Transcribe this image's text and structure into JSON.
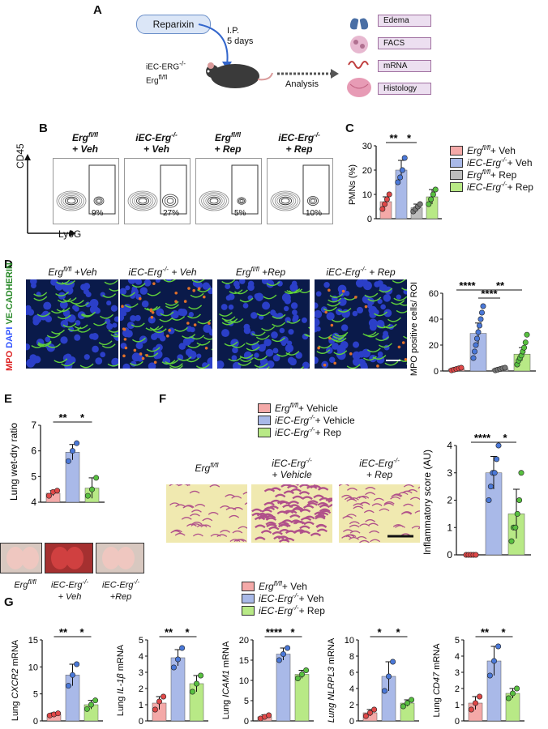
{
  "panels": {
    "A": "A",
    "B": "B",
    "C": "C",
    "D": "D",
    "E": "E",
    "F": "F",
    "G": "G"
  },
  "panel_a": {
    "drug": "Reparixin",
    "route": "I.P.",
    "duration": "5 days",
    "mouse_line1": "iEC-ERG",
    "mouse_line1_sup": "-/-",
    "mouse_line2": "Erg",
    "mouse_line2_sup": "fl/fl",
    "analysis": "Analysis",
    "outputs": [
      "Edema",
      "FACS",
      "mRNA",
      "Histology"
    ]
  },
  "panel_b": {
    "y_axis": "CD45",
    "x_axis": "Ly6G",
    "groups": [
      {
        "l1": "Erg",
        "sup": "fl/fl",
        "l2": "+ Veh",
        "pct": "9%"
      },
      {
        "l1": "iEC-Erg",
        "sup": "-/-",
        "l2": "+ Veh",
        "pct": "27%"
      },
      {
        "l1": "Erg",
        "sup": "fl/fl",
        "l2": "+ Rep",
        "pct": "5%"
      },
      {
        "l1": "iEC-Erg",
        "sup": "-/-",
        "l2": "+ Rep",
        "pct": "10%"
      }
    ]
  },
  "legend_bc": [
    {
      "name": "Erg",
      "sup": "fl/fl",
      "suffix": " + Veh",
      "color": "#f4a9a8"
    },
    {
      "name": "iEC-Erg",
      "sup": "-/-",
      "suffix": " + Veh",
      "color": "#a9b9e8"
    },
    {
      "name": "Erg",
      "sup": "fl/fl",
      "suffix": " + Rep",
      "color": "#bdbdbd"
    },
    {
      "name": "iEC-Erg",
      "sup": "-/-",
      "suffix": " + Rep",
      "color": "#b8e986"
    }
  ],
  "panel_d": {
    "titles": [
      {
        "l1": "Erg",
        "sup": "fl/fl",
        "l2": " +Veh"
      },
      {
        "l1": "iEC-Erg",
        "sup": "-/-",
        "l2": " + Veh"
      },
      {
        "l1": "Erg",
        "sup": "fl/fl",
        "l2": " +Rep"
      },
      {
        "l1": "iEC-Erg",
        "sup": "-/-",
        "l2": " + Rep"
      }
    ],
    "stain_mpo": "MPO",
    "stain_dapi": "DAPI",
    "stain_ve": "VE-CADHERIN"
  },
  "panel_e": {
    "photo_labels": [
      {
        "l1": "Erg",
        "sup": "fl/fl",
        "l2": ""
      },
      {
        "l1": "iEC-Erg",
        "sup": "-/-",
        "l2": "+ Veh"
      },
      {
        "l1": "iEC-Erg",
        "sup": "-/-",
        "l2": "+Rep"
      }
    ]
  },
  "panel_f": {
    "legend": [
      {
        "name": "Erg",
        "sup": "fl/fl",
        "suffix": " + Vehicle",
        "color": "#f4a9a8"
      },
      {
        "name": "iEC-Erg",
        "sup": "-/-",
        "suffix": " + Vehicle",
        "color": "#a9b9e8"
      },
      {
        "name": "iEC-Erg",
        "sup": "-/-",
        "suffix": " + Rep",
        "color": "#b8e986"
      }
    ],
    "titles": [
      {
        "l1": "Erg",
        "sup": "fl/fl",
        "l2": ""
      },
      {
        "l1": "iEC-Erg",
        "sup": "-/-",
        "l2": "+ Vehicle"
      },
      {
        "l1": "iEC-Erg",
        "sup": "-/-",
        "l2": "+ Rep"
      }
    ]
  },
  "legend_g": [
    {
      "name": "Erg",
      "sup": "fl/fl",
      "suffix": " + Veh",
      "color": "#f4a9a8"
    },
    {
      "name": "iEC-Erg",
      "sup": "-/-",
      "suffix": " + Veh",
      "color": "#a9b9e8"
    },
    {
      "name": "iEC-Erg",
      "sup": "-/-",
      "suffix": " + Rep",
      "color": "#b8e986"
    }
  ],
  "chart_data": [
    {
      "id": "C",
      "type": "bar",
      "ylabel": "PMNs (%)",
      "ylim": [
        0,
        30
      ],
      "yticks": [
        0,
        10,
        20,
        30
      ],
      "colors": [
        "#f4a9a8",
        "#a9b9e8",
        "#bdbdbd",
        "#b8e986"
      ],
      "means": [
        7,
        20,
        4.5,
        9
      ],
      "errors": [
        2,
        4,
        1.5,
        3
      ],
      "points": [
        [
          4,
          6,
          8,
          10
        ],
        [
          15,
          17,
          20,
          25
        ],
        [
          3,
          4,
          5,
          6
        ],
        [
          6,
          8,
          10,
          12
        ]
      ],
      "sig": [
        {
          "from": 0,
          "to": 1,
          "label": "**"
        },
        {
          "from": 1,
          "to": 2,
          "label": "*"
        }
      ]
    },
    {
      "id": "D",
      "type": "bar",
      "ylabel": "MPO positive cells/ ROI",
      "ylim": [
        0,
        60
      ],
      "yticks": [
        0,
        20,
        40,
        60
      ],
      "colors": [
        "#f4a9a8",
        "#a9b9e8",
        "#bdbdbd",
        "#b8e986"
      ],
      "means": [
        1.5,
        29,
        1.5,
        13
      ],
      "errors": [
        1,
        8,
        1,
        5
      ],
      "points": [
        [
          0.5,
          1,
          1.5,
          2,
          2.5
        ],
        [
          10,
          15,
          20,
          25,
          30,
          35,
          40,
          45,
          50
        ],
        [
          0.5,
          1,
          1.5,
          2,
          2.5
        ],
        [
          5,
          8,
          10,
          12,
          15,
          18,
          22,
          28
        ]
      ],
      "sig": [
        {
          "from": 0,
          "to": 1,
          "label": "****"
        },
        {
          "from": 1,
          "to": 3,
          "label": "**"
        },
        {
          "from": 1,
          "to": 2,
          "label": "****"
        }
      ]
    },
    {
      "id": "E",
      "type": "bar",
      "ylabel": "Lung wet-dry ratio",
      "ylim": [
        4,
        7
      ],
      "yticks": [
        4,
        5,
        6,
        7
      ],
      "colors": [
        "#f4a9a8",
        "#a9b9e8",
        "#b8e986"
      ],
      "means": [
        4.35,
        5.95,
        4.55
      ],
      "errors": [
        0.1,
        0.3,
        0.4
      ],
      "points": [
        [
          4.25,
          4.4,
          4.45
        ],
        [
          5.6,
          6.0,
          6.3
        ],
        [
          4.25,
          4.5,
          4.95
        ]
      ],
      "sig": [
        {
          "from": 0,
          "to": 1,
          "label": "**"
        },
        {
          "from": 1,
          "to": 2,
          "label": "*"
        }
      ]
    },
    {
      "id": "F",
      "type": "bar",
      "ylabel": "Inflammatory score (AU)",
      "ylim": [
        0,
        4
      ],
      "yticks": [
        0,
        1,
        2,
        3,
        4
      ],
      "colors": [
        "#f4a9a8",
        "#a9b9e8",
        "#b8e986"
      ],
      "means": [
        0,
        3,
        1.5
      ],
      "errors": [
        0,
        0.6,
        0.9
      ],
      "points": [
        [
          0,
          0,
          0,
          0,
          0
        ],
        [
          2,
          2.5,
          3,
          3,
          3.5,
          4
        ],
        [
          0.5,
          1,
          1,
          1.5,
          2,
          3
        ]
      ],
      "sig": [
        {
          "from": 0,
          "to": 1,
          "label": "****"
        },
        {
          "from": 1,
          "to": 2,
          "label": "*"
        }
      ]
    },
    {
      "id": "G1",
      "type": "bar",
      "ylabel_pre": "Lung ",
      "ylabel_gene": "CXCR2",
      "ylabel_post": " mRNA",
      "ylim": [
        0,
        15
      ],
      "yticks": [
        0,
        5,
        10,
        15
      ],
      "colors": [
        "#f4a9a8",
        "#a9b9e8",
        "#b8e986"
      ],
      "means": [
        1.2,
        8.5,
        3
      ],
      "errors": [
        0.3,
        2,
        0.8
      ],
      "points": [
        [
          1,
          1.2,
          1.4
        ],
        [
          6.5,
          8.5,
          10.5
        ],
        [
          2.2,
          3,
          3.8
        ]
      ],
      "sig": [
        {
          "from": 0,
          "to": 1,
          "label": "**"
        },
        {
          "from": 1,
          "to": 2,
          "label": "*"
        }
      ]
    },
    {
      "id": "G2",
      "type": "bar",
      "ylabel_pre": "Lung ",
      "ylabel_gene": "IL-1β",
      "ylabel_post": " mRNA",
      "ylim": [
        0,
        5
      ],
      "yticks": [
        0,
        1,
        2,
        3,
        4,
        5
      ],
      "colors": [
        "#f4a9a8",
        "#a9b9e8",
        "#b8e986"
      ],
      "means": [
        1.1,
        3.9,
        2.3
      ],
      "errors": [
        0.4,
        0.5,
        0.5
      ],
      "points": [
        [
          0.7,
          1.2,
          1.5
        ],
        [
          3.3,
          3.8,
          4.5
        ],
        [
          1.8,
          2.3,
          2.8
        ]
      ],
      "sig": [
        {
          "from": 0,
          "to": 1,
          "label": "**"
        },
        {
          "from": 1,
          "to": 2,
          "label": "*"
        }
      ]
    },
    {
      "id": "G3",
      "type": "bar",
      "ylabel_pre": "Lung ",
      "ylabel_gene": "ICAM1",
      "ylabel_post": " mRNA",
      "ylim": [
        0,
        20
      ],
      "yticks": [
        0,
        5,
        10,
        15,
        20
      ],
      "colors": [
        "#f4a9a8",
        "#a9b9e8",
        "#b8e986"
      ],
      "means": [
        1,
        16.5,
        11.5
      ],
      "errors": [
        0.5,
        1.5,
        1
      ],
      "points": [
        [
          0.6,
          1,
          1.4
        ],
        [
          15,
          16.5,
          18
        ],
        [
          10.5,
          11.5,
          12.5
        ]
      ],
      "sig": [
        {
          "from": 0,
          "to": 1,
          "label": "****"
        },
        {
          "from": 1,
          "to": 2,
          "label": "*"
        }
      ]
    },
    {
      "id": "G4",
      "type": "bar",
      "ylabel_pre": "",
      "ylabel_gene": "Lung NLRPL3",
      "ylabel_post": " mRNA",
      "ylim": [
        0,
        10
      ],
      "yticks": [
        0,
        2,
        4,
        6,
        8,
        10
      ],
      "colors": [
        "#f4a9a8",
        "#a9b9e8",
        "#b8e986"
      ],
      "means": [
        1,
        5.5,
        2.2
      ],
      "errors": [
        0.4,
        1.8,
        0.4
      ],
      "points": [
        [
          0.6,
          1,
          1.4
        ],
        [
          3.7,
          5.5,
          7.3
        ],
        [
          1.8,
          2.2,
          2.6
        ]
      ],
      "sig": [
        {
          "from": 0,
          "to": 1,
          "label": "*"
        },
        {
          "from": 1,
          "to": 2,
          "label": "*"
        }
      ]
    },
    {
      "id": "G5",
      "type": "bar",
      "ylabel_pre": "Lung ",
      "ylabel_gene": "CD47",
      "ylabel_post": " mRNA",
      "ylim": [
        0,
        5
      ],
      "yticks": [
        0,
        1,
        2,
        3,
        4,
        5
      ],
      "colors": [
        "#f4a9a8",
        "#a9b9e8",
        "#b8e986"
      ],
      "means": [
        1.1,
        3.7,
        1.7
      ],
      "errors": [
        0.4,
        0.9,
        0.3
      ],
      "points": [
        [
          0.7,
          1.1,
          1.5
        ],
        [
          2.8,
          3.7,
          4.6
        ],
        [
          1.4,
          1.7,
          2.0
        ]
      ],
      "sig": [
        {
          "from": 0,
          "to": 1,
          "label": "**"
        },
        {
          "from": 1,
          "to": 2,
          "label": "*"
        }
      ]
    }
  ]
}
